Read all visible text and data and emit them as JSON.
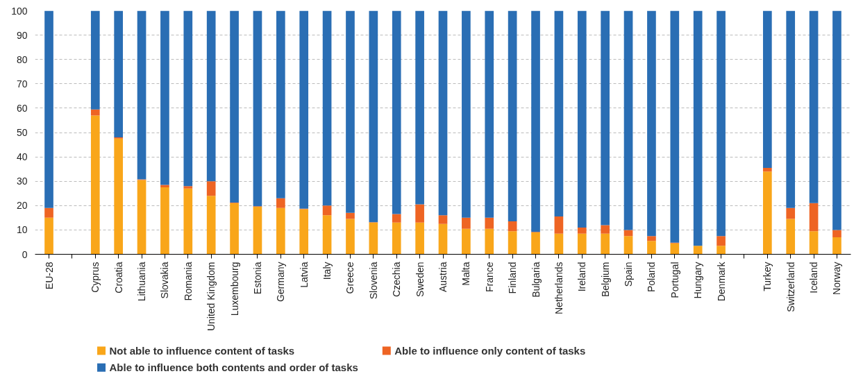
{
  "chart_data": {
    "type": "bar",
    "stacked": true,
    "categories": [
      "EU-28",
      null,
      "Cyprus",
      "Croatia",
      "Lithuania",
      "Slovakia",
      "Romania",
      "United Kingdom",
      "Luxembourg",
      "Estonia",
      "Germany",
      "Latvia",
      "Italy",
      "Greece",
      "Slovenia",
      "Czechia",
      "Sweden",
      "Austria",
      "Malta",
      "France",
      "Finland",
      "Bulgaria",
      "Netherlands",
      "Ireland",
      "Belgium",
      "Spain",
      "Poland",
      "Portugal",
      "Hungary",
      "Denmark",
      null,
      "Turkey",
      "Switzerland",
      "Iceland",
      "Norway"
    ],
    "series": [
      {
        "name": "Not able to influence content of tasks",
        "color": "#f9a61a",
        "values": [
          15,
          null,
          57,
          47.5,
          30.5,
          27.5,
          27,
          24,
          21,
          19.5,
          19,
          18.5,
          16,
          14.5,
          13,
          13,
          13,
          12.5,
          10.5,
          10.5,
          9.5,
          9,
          8.5,
          8.5,
          8.5,
          7.5,
          5.5,
          4.5,
          3.5,
          3.5,
          null,
          34,
          14.5,
          9.5,
          7
        ]
      },
      {
        "name": "Able to influence only content of tasks",
        "color": "#ee6423",
        "values": [
          4,
          null,
          2.5,
          0.5,
          0.3,
          1,
          1,
          6,
          0.2,
          0.2,
          4,
          0.2,
          4,
          2.5,
          0.2,
          3.5,
          7.5,
          3.5,
          4.5,
          4.5,
          4,
          0.2,
          7,
          2.5,
          3.5,
          2.5,
          2,
          0.3,
          null,
          4,
          null,
          1.5,
          4.5,
          11.5,
          3
        ]
      },
      {
        "name": "Able to influence both contents and order of tasks",
        "color": "#2a6eb4",
        "values": [
          81,
          null,
          40.5,
          52,
          69.2,
          71.5,
          72,
          70,
          78.8,
          80.3,
          77,
          81.3,
          80,
          83,
          86.8,
          83.5,
          79.5,
          84,
          85,
          85,
          86.5,
          90.8,
          84.5,
          89,
          88,
          90,
          92.5,
          95.2,
          96.5,
          92.5,
          null,
          64.5,
          81,
          79,
          90
        ]
      }
    ],
    "ylim": [
      0,
      100
    ],
    "yticks": [
      0,
      10,
      20,
      30,
      40,
      50,
      60,
      70,
      80,
      90,
      100
    ],
    "grid": "y",
    "legend": "bottom"
  }
}
